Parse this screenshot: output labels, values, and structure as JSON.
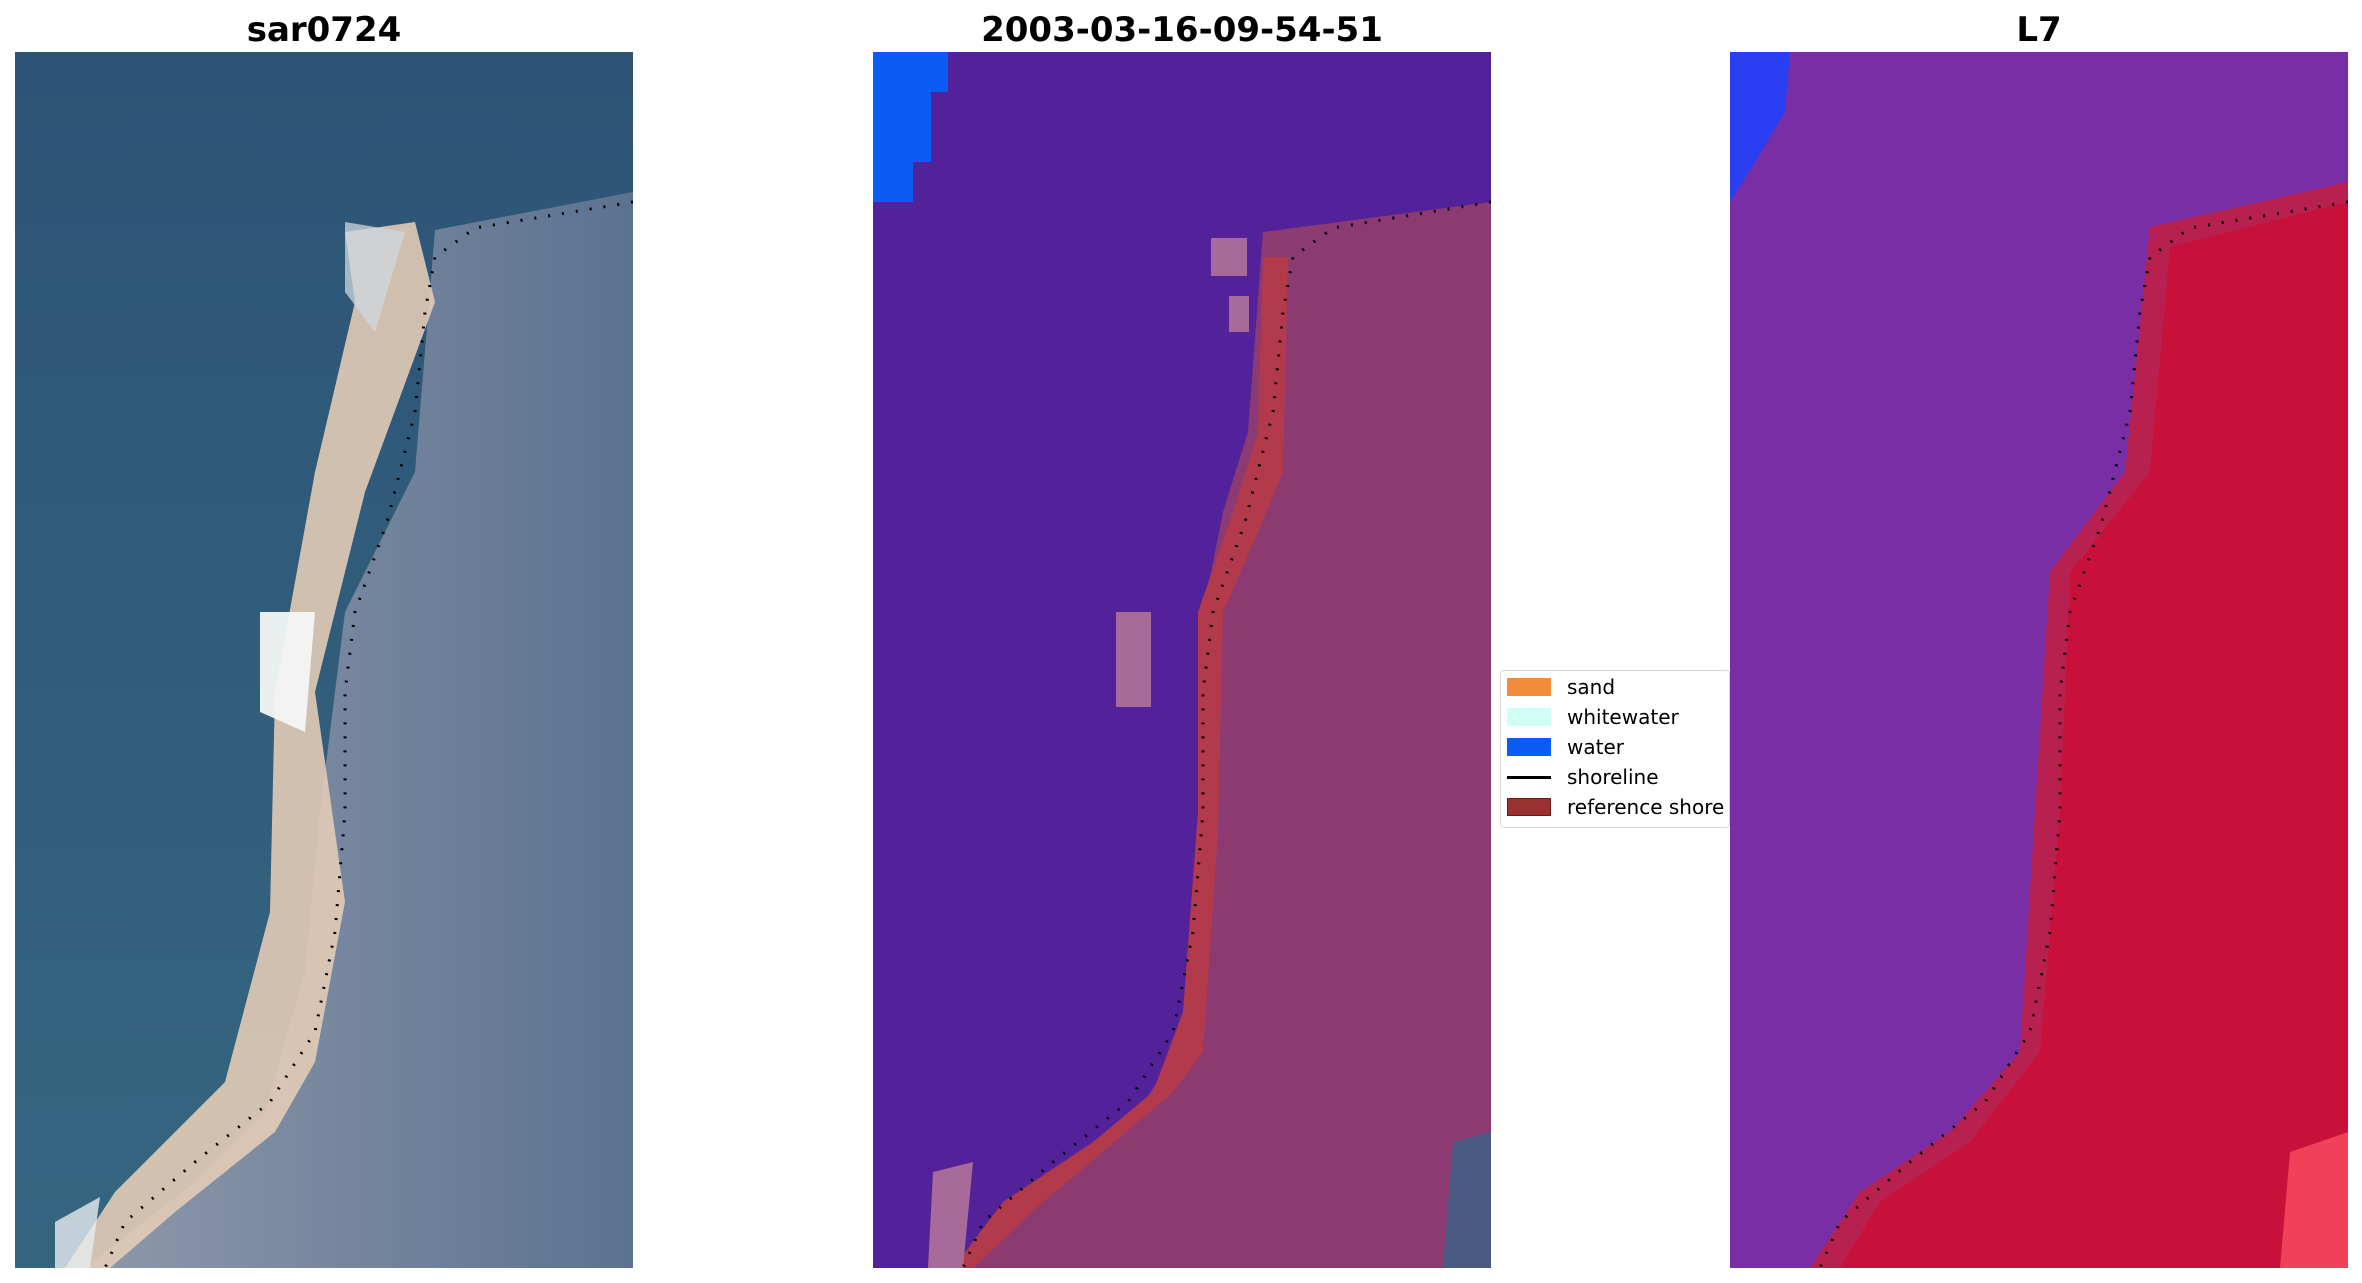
{
  "panels": [
    {
      "title": "sar0724",
      "kind": "rgb"
    },
    {
      "title": "2003-03-16-09-54-51",
      "kind": "classified"
    },
    {
      "title": "L7",
      "kind": "index"
    }
  ],
  "legend": {
    "items": [
      {
        "label": "sand",
        "color": "#f48b3a",
        "type": "patch"
      },
      {
        "label": "whitewater",
        "color": "#cffff5",
        "type": "patch"
      },
      {
        "label": "water",
        "color": "#0a5cf5",
        "type": "patch"
      },
      {
        "label": "shoreline",
        "color": "#000000",
        "type": "line"
      },
      {
        "label": "reference shore",
        "color": "#9b3030",
        "type": "patch"
      }
    ]
  },
  "colors": {
    "rgb_water": "#2e5a7a",
    "rgb_land": "#7f8ea4",
    "rgb_beach": "#e3cdb6",
    "classified_water": "#53229a",
    "classified_land": "#8c3a72",
    "classified_reference": "#b23a4a",
    "index_water": "#7a2ea6",
    "index_land": "#c8103a",
    "index_blue": "#2a3ef2"
  }
}
